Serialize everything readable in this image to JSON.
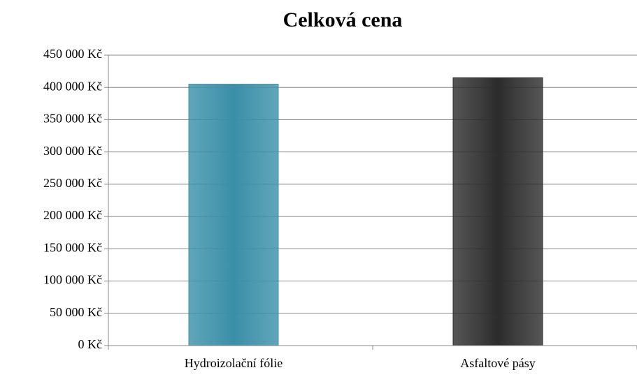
{
  "chart_data": {
    "type": "bar",
    "title": "Celková cena",
    "categories": [
      "Hydroizolační fólie",
      "Asfaltové pásy"
    ],
    "values": [
      405000,
      415000
    ],
    "colors": [
      "#3a8fa8",
      "#2c2c2c"
    ],
    "ylim": [
      0,
      450000
    ],
    "yticks": [
      {
        "value": 0,
        "label": "0 Kč"
      },
      {
        "value": 50000,
        "label": "50 000 Kč"
      },
      {
        "value": 100000,
        "label": "100 000 Kč"
      },
      {
        "value": 150000,
        "label": "150 000 Kč"
      },
      {
        "value": 200000,
        "label": "200 000 Kč"
      },
      {
        "value": 250000,
        "label": "250 000 Kč"
      },
      {
        "value": 300000,
        "label": "300 000 Kč"
      },
      {
        "value": 350000,
        "label": "350 000 Kč"
      },
      {
        "value": 400000,
        "label": "400 000 Kč"
      },
      {
        "value": 450000,
        "label": "450 000 Kč"
      }
    ],
    "grid": true
  }
}
